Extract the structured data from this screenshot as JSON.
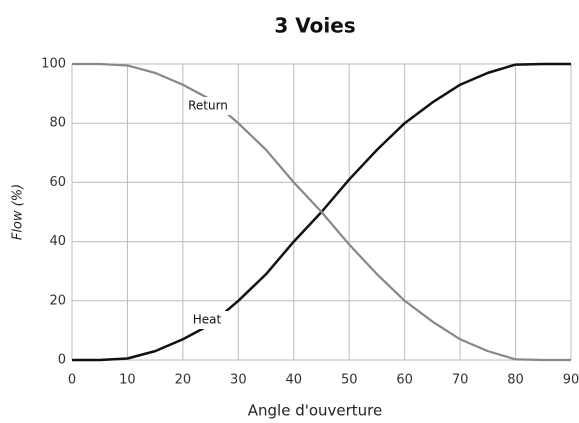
{
  "chart_data": {
    "type": "line",
    "title": "3 Voies",
    "xlabel": "Angle d'ouverture",
    "ylabel": "Flow (%)",
    "x": [
      0,
      5,
      10,
      15,
      20,
      25,
      30,
      35,
      40,
      45,
      50,
      55,
      60,
      65,
      70,
      75,
      80,
      85,
      90
    ],
    "series": [
      {
        "name": "Heat",
        "color": "#111111",
        "values": [
          0,
          0,
          0.5,
          3,
          7,
          12,
          20,
          29,
          40,
          50,
          61,
          71,
          80,
          87,
          93,
          97,
          99.8,
          100,
          100
        ]
      },
      {
        "name": "Return",
        "color": "#888888",
        "values": [
          100,
          100,
          99.5,
          97,
          93,
          88,
          80,
          71,
          60,
          50,
          39,
          29,
          20,
          13,
          7,
          3,
          0.2,
          0,
          0
        ]
      }
    ],
    "xlim": [
      0,
      90
    ],
    "xticks": [
      0,
      10,
      20,
      30,
      40,
      50,
      60,
      70,
      80,
      90
    ],
    "ylim": [
      0,
      100
    ],
    "yticks": [
      0,
      20,
      40,
      60,
      80,
      100
    ],
    "grid": true
  }
}
